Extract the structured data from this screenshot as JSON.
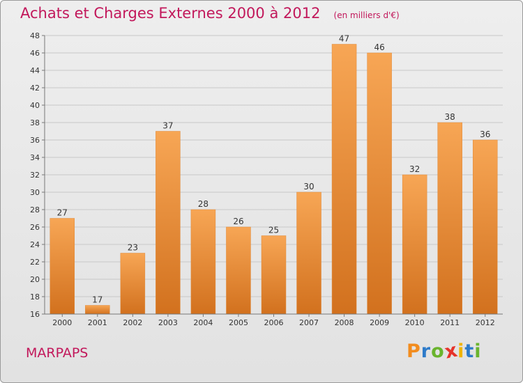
{
  "header": {
    "title": "Achats et Charges Externes 2000 à 2012",
    "unit": "(en milliers d'€)"
  },
  "commune": "MARPAPS",
  "logo": {
    "text": "Proxiti",
    "colors": [
      "#f28c1e",
      "#2e7bc9",
      "#6ab42d",
      "#e6332a",
      "#f0b400",
      "#2e7bc9",
      "#6ab42d"
    ]
  },
  "chart_data": {
    "type": "bar",
    "categories": [
      "2000",
      "2001",
      "2002",
      "2003",
      "2004",
      "2005",
      "2006",
      "2007",
      "2008",
      "2009",
      "2010",
      "2011",
      "2012"
    ],
    "values": [
      27,
      17,
      23,
      37,
      28,
      26,
      25,
      30,
      47,
      46,
      32,
      38,
      36
    ],
    "ylim": [
      16,
      48
    ],
    "ytick_step": 2,
    "grid": true,
    "bar_color_top": "#f7a655",
    "bar_color_bottom": "#d2711e"
  }
}
